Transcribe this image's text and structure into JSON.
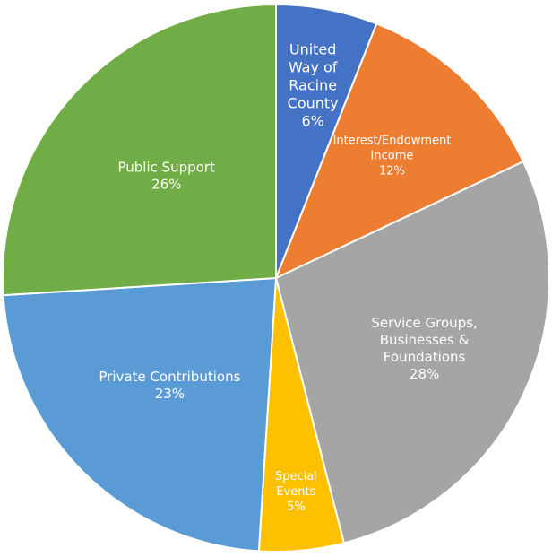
{
  "chart_data": {
    "type": "pie",
    "slices": [
      {
        "label": "United Way of Racine County",
        "percent_label": "6%",
        "value": 6,
        "color": "#4472C4"
      },
      {
        "label": "Interest/Endowment Income",
        "percent_label": "12%",
        "value": 12,
        "color": "#ED7D31"
      },
      {
        "label": "Service Groups, Businesses & Foundations",
        "percent_label": "28%",
        "value": 28,
        "color": "#A5A5A5"
      },
      {
        "label": "Special Events",
        "percent_label": "5%",
        "value": 5,
        "color": "#FFC000"
      },
      {
        "label": "Private Contributions",
        "percent_label": "23%",
        "value": 23,
        "color": "#5B9BD5"
      },
      {
        "label": "Public Support",
        "percent_label": "26%",
        "value": 26,
        "color": "#70AD47"
      }
    ]
  }
}
